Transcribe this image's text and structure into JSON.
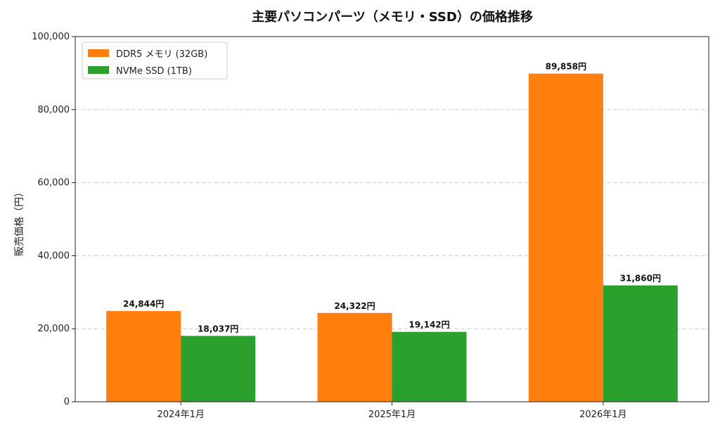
{
  "chart_data": {
    "type": "bar",
    "title": "主要パソコンパーツ（メモリ・SSD）の価格推移",
    "xlabel": "",
    "ylabel": "販売価格（円）",
    "categories": [
      "2024年1月",
      "2025年1月",
      "2026年1月"
    ],
    "series": [
      {
        "name": "DDR5 メモリ (32GB)",
        "color": "#ff7f0e",
        "values": [
          24844,
          24322,
          89858
        ],
        "labels": [
          "24,844円",
          "24,322円",
          "89,858円"
        ]
      },
      {
        "name": "NVMe SSD (1TB)",
        "color": "#2ca02c",
        "values": [
          18037,
          19142,
          31860
        ],
        "labels": [
          "18,037円",
          "19,142円",
          "31,860円"
        ]
      }
    ],
    "ylim": [
      0,
      100000
    ],
    "yticks": [
      0,
      20000,
      40000,
      60000,
      80000,
      100000
    ],
    "ytick_labels": [
      "0",
      "20,000",
      "40,000",
      "60,000",
      "80,000",
      "100,000"
    ],
    "grid": "y-dashed",
    "legend": "top-left"
  }
}
